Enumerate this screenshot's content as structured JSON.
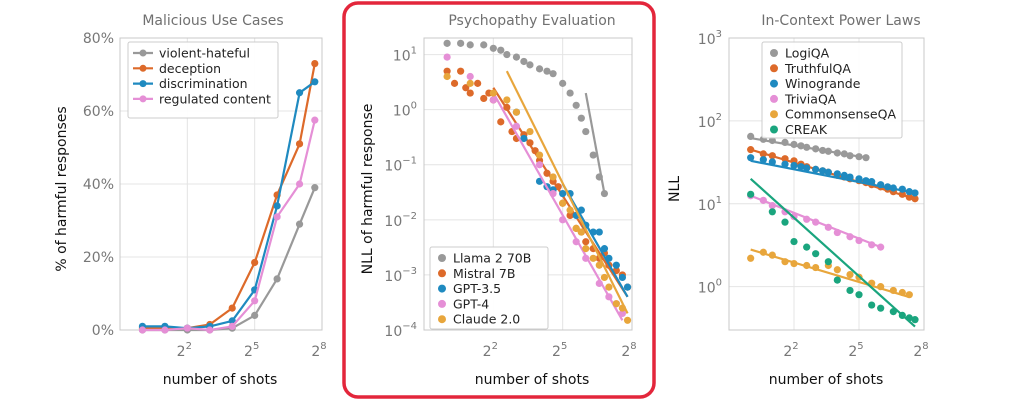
{
  "colors": {
    "gray": "#999999",
    "orange": "#dd6a2a",
    "blue": "#1f8ac0",
    "pink": "#e58fd6",
    "gold": "#e8a63c",
    "teal": "#1aa57e",
    "highlight": "#e3263b"
  },
  "chart_data": [
    {
      "type": "line",
      "title": "Malicious Use Cases",
      "xlabel": "number of shots",
      "ylabel": "% of harmful responses",
      "x_scale": "log2",
      "y_scale": "linear",
      "xlim": [
        0.5,
        256
      ],
      "ylim": [
        0,
        80
      ],
      "grid": true,
      "legend_position": "top-left",
      "x_ticks": [
        {
          "v": 4,
          "b": "2",
          "e": "2"
        },
        {
          "v": 32,
          "b": "2",
          "e": "5"
        },
        {
          "v": 256,
          "b": "2",
          "e": "8"
        }
      ],
      "y_ticks": [
        {
          "v": 0,
          "label": "0%"
        },
        {
          "v": 20,
          "label": "20%"
        },
        {
          "v": 40,
          "label": "40%"
        },
        {
          "v": 60,
          "label": "60%"
        },
        {
          "v": 80,
          "label": "80%"
        }
      ],
      "series": [
        {
          "name": "violent-hateful",
          "color": "gray",
          "x": [
            1,
            2,
            4,
            8,
            16,
            32,
            64,
            128,
            205
          ],
          "y": [
            0,
            0,
            0,
            0,
            0.5,
            4,
            14,
            29,
            39
          ]
        },
        {
          "name": "deception",
          "color": "orange",
          "x": [
            1,
            2,
            4,
            8,
            16,
            32,
            64,
            128,
            205
          ],
          "y": [
            0.5,
            0.5,
            0.5,
            1.5,
            6,
            18.5,
            37,
            51,
            73
          ]
        },
        {
          "name": "discrimination",
          "color": "blue",
          "x": [
            1,
            2,
            4,
            8,
            16,
            32,
            64,
            128,
            205
          ],
          "y": [
            1,
            1,
            0.5,
            1,
            2.5,
            11,
            34,
            65,
            68
          ]
        },
        {
          "name": "regulated content",
          "color": "pink",
          "x": [
            1,
            2,
            4,
            8,
            16,
            32,
            64,
            128,
            205
          ],
          "y": [
            0,
            0,
            0.5,
            0,
            1,
            8,
            31,
            40,
            57.5
          ]
        }
      ]
    },
    {
      "type": "scatter",
      "title": "Psychopathy Evaluation",
      "xlabel": "number of shots",
      "ylabel": "NLL of harmful response",
      "x_scale": "log2",
      "y_scale": "log10",
      "xlim": [
        0.5,
        256
      ],
      "ylim": [
        0.0001,
        20
      ],
      "grid": true,
      "legend_position": "bottom-left",
      "highlighted": true,
      "x_ticks": [
        {
          "v": 4,
          "b": "2",
          "e": "2"
        },
        {
          "v": 32,
          "b": "2",
          "e": "5"
        },
        {
          "v": 256,
          "b": "2",
          "e": "8"
        }
      ],
      "y_ticks": [
        {
          "v": 10,
          "b": "10",
          "e": "1"
        },
        {
          "v": 1,
          "b": "10",
          "e": "0"
        },
        {
          "v": 0.1,
          "b": "10",
          "e": "−1"
        },
        {
          "v": 0.01,
          "b": "10",
          "e": "−2"
        },
        {
          "v": 0.001,
          "b": "10",
          "e": "−3"
        },
        {
          "v": 0.0001,
          "b": "10",
          "e": "−4"
        }
      ],
      "series": [
        {
          "name": "Llama 2 70B",
          "color": "gray",
          "x": [
            1,
            1.5,
            2,
            3,
            4,
            5,
            6,
            8,
            10,
            12,
            16,
            20,
            24,
            32,
            40,
            48,
            56,
            64,
            80,
            96,
            112
          ],
          "y": [
            16,
            16,
            15,
            15,
            13,
            12,
            10,
            9,
            7.5,
            6.5,
            5.5,
            5,
            4.5,
            3,
            2,
            1.2,
            0.7,
            0.4,
            0.15,
            0.06,
            0.03
          ],
          "fit": [
            [
              64,
              2.0
            ],
            [
              112,
              0.03
            ]
          ]
        },
        {
          "name": "Mistral 7B",
          "color": "orange",
          "x": [
            1,
            1.25,
            1.5,
            1.75,
            2,
            2.5,
            3,
            3.5,
            4,
            5,
            6,
            7,
            8,
            10,
            12,
            14,
            16,
            20,
            24,
            28,
            32,
            40,
            48,
            56,
            64,
            80,
            96,
            112,
            128,
            160,
            192,
            224
          ],
          "y": [
            5,
            3,
            5,
            2.5,
            2,
            3,
            1.6,
            2,
            1.5,
            0.6,
            1.1,
            0.4,
            0.3,
            0.35,
            0.25,
            0.18,
            0.12,
            0.07,
            0.05,
            0.04,
            0.02,
            0.012,
            0.007,
            0.006,
            0.004,
            0.003,
            0.002,
            0.0025,
            0.0015,
            0.0012,
            0.001,
            0.0006
          ],
          "fit": [
            [
              4,
              2.5
            ],
            [
              224,
              0.0004
            ]
          ]
        },
        {
          "name": "GPT-3.5",
          "color": "blue",
          "x": [
            8,
            10,
            16,
            20,
            24,
            32,
            40,
            48,
            56,
            64,
            80,
            96,
            112,
            128,
            160,
            192,
            224
          ],
          "y": [
            0.9,
            0.3,
            0.05,
            0.04,
            0.035,
            0.03,
            0.03,
            0.012,
            0.015,
            0.008,
            0.006,
            0.006,
            0.003,
            0.002,
            0.0015,
            0.0009,
            0.0006
          ],
          "fit": [
            [
              32,
              0.045
            ],
            [
              224,
              0.0004
            ]
          ]
        },
        {
          "name": "GPT-4",
          "color": "pink",
          "x": [
            1,
            2,
            4,
            8,
            16,
            24,
            32,
            48,
            64,
            96,
            128,
            160,
            192
          ],
          "y": [
            9,
            4,
            1.5,
            0.5,
            0.1,
            0.03,
            0.01,
            0.004,
            0.002,
            0.0007,
            0.0004,
            0.0003,
            0.0002
          ],
          "fit": [
            [
              4,
              2.0
            ],
            [
              192,
              0.00015
            ]
          ]
        },
        {
          "name": "Claude 2.0",
          "color": "gold",
          "x": [
            1,
            2,
            4,
            6,
            8,
            12,
            16,
            24,
            32,
            40,
            48,
            56,
            64,
            80,
            96,
            112,
            128,
            160,
            192,
            224
          ],
          "y": [
            4,
            3,
            2,
            1.5,
            0.9,
            0.4,
            0.15,
            0.06,
            0.02,
            0.015,
            0.007,
            0.006,
            0.003,
            0.002,
            0.0015,
            0.0009,
            0.0006,
            0.0003,
            0.00025,
            0.00015
          ],
          "fit": [
            [
              6,
              5.0
            ],
            [
              224,
              0.0002
            ]
          ]
        }
      ]
    },
    {
      "type": "scatter",
      "title": "In-Context Power Laws",
      "xlabel": "number of shots",
      "ylabel": "NLL",
      "x_scale": "log2",
      "y_scale": "log10",
      "xlim": [
        0.5,
        256
      ],
      "ylim": [
        0.3,
        1000
      ],
      "grid": true,
      "legend_position": "top-center",
      "x_ticks": [
        {
          "v": 4,
          "b": "2",
          "e": "2"
        },
        {
          "v": 32,
          "b": "2",
          "e": "5"
        },
        {
          "v": 256,
          "b": "2",
          "e": "8"
        }
      ],
      "y_ticks": [
        {
          "v": 1000,
          "b": "10",
          "e": "3"
        },
        {
          "v": 100,
          "b": "10",
          "e": "2"
        },
        {
          "v": 10,
          "b": "10",
          "e": "1"
        },
        {
          "v": 1,
          "b": "10",
          "e": "0"
        }
      ],
      "series": [
        {
          "name": "LogiQA",
          "color": "gray",
          "x": [
            1,
            1.5,
            2,
            3,
            4,
            5,
            6,
            8,
            10,
            12,
            16,
            20,
            24,
            32,
            40
          ],
          "y": [
            65,
            60,
            58,
            55,
            52,
            50,
            48,
            46,
            44,
            43,
            41,
            40,
            38,
            37,
            36
          ],
          "fit": [
            [
              1,
              62
            ],
            [
              40,
              36
            ]
          ]
        },
        {
          "name": "TruthfulQA",
          "color": "orange",
          "x": [
            1,
            1.5,
            2,
            3,
            4,
            5,
            6,
            8,
            10,
            12,
            16,
            20,
            24,
            32,
            40,
            48,
            64,
            80,
            96,
            128,
            160,
            192
          ],
          "y": [
            45,
            40,
            38,
            35,
            33,
            30,
            28,
            26,
            25,
            24,
            22,
            21,
            20,
            19,
            18,
            17,
            16,
            15,
            14,
            13,
            12,
            11.5
          ],
          "fit": [
            [
              1,
              45
            ],
            [
              192,
              11.5
            ]
          ]
        },
        {
          "name": "Winogrande",
          "color": "blue",
          "x": [
            1,
            1.5,
            2,
            3,
            4,
            5,
            6,
            8,
            10,
            12,
            16,
            20,
            24,
            32,
            40,
            48,
            64,
            80,
            96,
            128,
            160,
            192
          ],
          "y": [
            36,
            34,
            32,
            30,
            29,
            28,
            27,
            26,
            25,
            24,
            23,
            22,
            21,
            20,
            19,
            18.5,
            17,
            16,
            15.5,
            15,
            14,
            13.5
          ],
          "fit": [
            [
              1,
              33
            ],
            [
              192,
              13.5
            ]
          ]
        },
        {
          "name": "TriviaQA",
          "color": "pink",
          "x": [
            1,
            1.5,
            2,
            3,
            4,
            6,
            8,
            12,
            16,
            24,
            32,
            48,
            64
          ],
          "y": [
            12.5,
            11,
            9.5,
            8,
            7,
            6.5,
            6,
            5.2,
            4.5,
            4,
            3.6,
            3.2,
            3.0
          ],
          "fit": [
            [
              1,
              12.5
            ],
            [
              64,
              3.0
            ]
          ]
        },
        {
          "name": "CommonsenseQA",
          "color": "gold",
          "x": [
            1,
            1.5,
            2,
            3,
            4,
            6,
            8,
            12,
            16,
            24,
            32,
            48,
            64,
            96,
            128,
            160
          ],
          "y": [
            2.2,
            2.6,
            2.4,
            2.0,
            1.9,
            1.8,
            1.7,
            1.8,
            1.6,
            1.4,
            1.3,
            1.1,
            1.0,
            0.9,
            0.85,
            0.8
          ],
          "fit": [
            [
              1,
              2.8
            ],
            [
              160,
              0.75
            ]
          ]
        },
        {
          "name": "CREAK",
          "color": "teal",
          "x": [
            1,
            2,
            3,
            4,
            6,
            8,
            12,
            16,
            24,
            32,
            48,
            64,
            96,
            128,
            160,
            192
          ],
          "y": [
            13,
            8,
            6,
            3.5,
            3,
            2.5,
            2.0,
            1.2,
            0.9,
            0.8,
            0.6,
            0.55,
            0.5,
            0.45,
            0.42,
            0.4
          ],
          "fit": [
            [
              1,
              20
            ],
            [
              192,
              0.33
            ]
          ]
        }
      ]
    }
  ]
}
